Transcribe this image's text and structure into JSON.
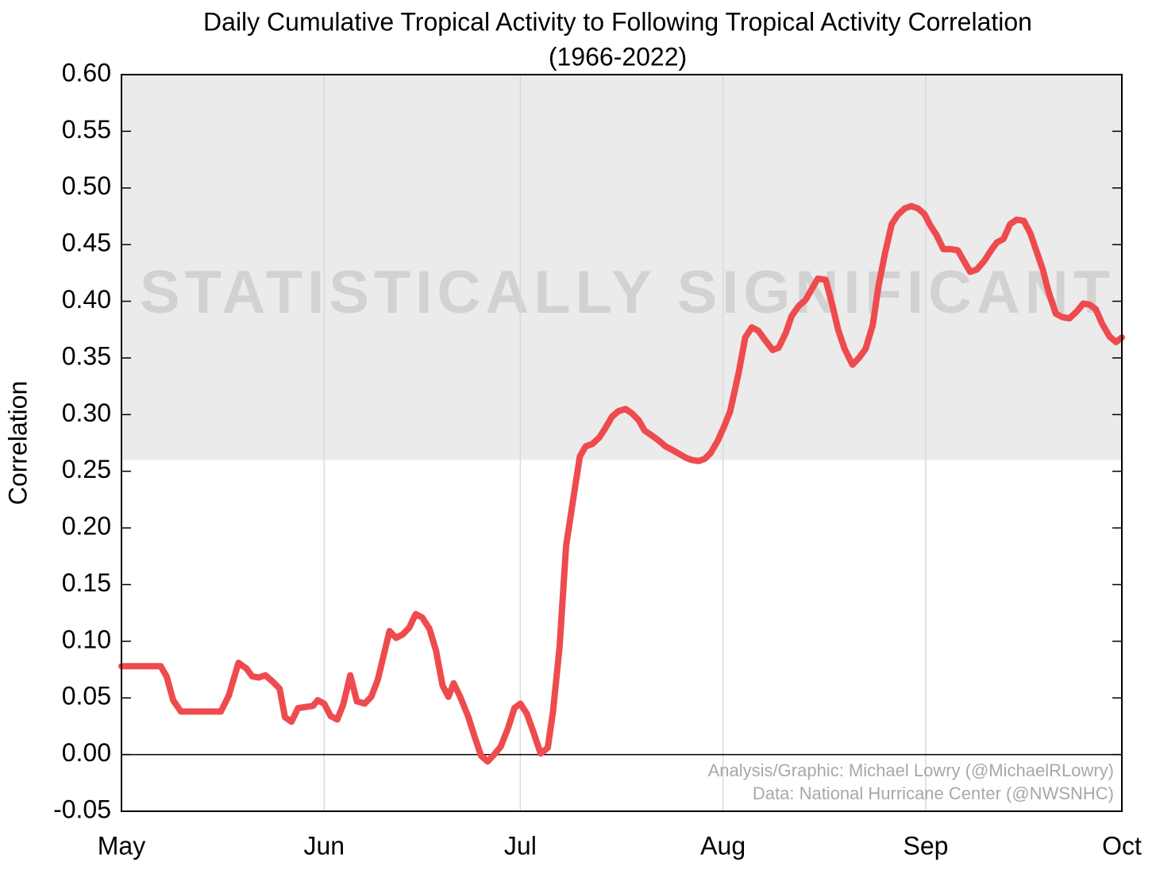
{
  "chart_data": {
    "type": "line",
    "title": "Daily Cumulative Tropical Activity to Following Tropical Activity Correlation",
    "subtitle": "(1966-2022)",
    "y_label": "Correlation",
    "annotation": "STATISTICALLY SIGNIFICANT",
    "credits": [
      "Analysis/Graphic: Michael Lowry (@MichaelRLowry)",
      "Data: National Hurricane Center (@NWSNHC)"
    ],
    "significance_threshold": 0.26,
    "xlim": [
      0,
      153
    ],
    "xticks": [
      {
        "value": 0,
        "label": "May"
      },
      {
        "value": 31,
        "label": "Jun"
      },
      {
        "value": 61,
        "label": "Jul"
      },
      {
        "value": 92,
        "label": "Aug"
      },
      {
        "value": 123,
        "label": "Sep"
      },
      {
        "value": 153,
        "label": "Oct"
      }
    ],
    "ylim": [
      -0.05,
      0.6
    ],
    "yticks": [
      {
        "value": -0.05,
        "label": "-0.05"
      },
      {
        "value": 0,
        "label": "0.00"
      },
      {
        "value": 0.05,
        "label": "0.05"
      },
      {
        "value": 0.1,
        "label": "0.10"
      },
      {
        "value": 0.15,
        "label": "0.15"
      },
      {
        "value": 0.2,
        "label": "0.20"
      },
      {
        "value": 0.25,
        "label": "0.25"
      },
      {
        "value": 0.3,
        "label": "0.30"
      },
      {
        "value": 0.35,
        "label": "0.35"
      },
      {
        "value": 0.4,
        "label": "0.40"
      },
      {
        "value": 0.45,
        "label": "0.45"
      },
      {
        "value": 0.5,
        "label": "0.50"
      },
      {
        "value": 0.55,
        "label": "0.55"
      },
      {
        "value": 0.6,
        "label": "0.60"
      }
    ],
    "grid": true,
    "series": [
      {
        "name": "Correlation",
        "color": "#ee4b4f",
        "x": [
          0,
          6,
          6.9,
          7.9,
          9.1,
          15.2,
          16.4,
          17.9,
          19.1,
          20,
          21,
          22,
          23.2,
          24.2,
          25,
          26,
          27,
          29.3,
          30,
          31,
          32,
          33,
          33.9,
          35,
          36,
          37.2,
          38.2,
          39.2,
          41,
          42,
          43,
          44,
          45,
          46,
          47.1,
          48.1,
          49.1,
          50,
          50.8,
          51.8,
          53,
          54,
          55,
          56,
          57,
          58,
          59.1,
          60.1,
          61,
          62,
          63,
          64.1,
          65.2,
          66,
          67,
          68,
          69.1,
          70.1,
          71,
          72,
          73.1,
          74,
          75,
          76,
          77.1,
          78.1,
          79.1,
          80,
          81,
          82.2,
          83.2,
          84.2,
          85.4,
          86.3,
          87.2,
          88.3,
          89.2,
          90.1,
          91.2,
          92.2,
          93.1,
          94.4,
          95.4,
          96.4,
          97.4,
          98.4,
          99.6,
          100.5,
          101.6,
          102.5,
          103.6,
          104.6,
          105.5,
          106.5,
          107.7,
          108.7,
          109.6,
          110.6,
          111.8,
          112.8,
          113.8,
          114.9,
          115.8,
          116.8,
          117.8,
          118.7,
          119.8,
          120.8,
          121.8,
          122.8,
          123.7,
          124.7,
          125.7,
          126.9,
          127.9,
          128.8,
          129.8,
          130.8,
          132,
          133,
          133.9,
          134.9,
          135.9,
          136.9,
          138,
          139,
          139.9,
          140.9,
          141.8,
          142.9,
          143.9,
          145,
          146.1,
          147.1,
          148.1,
          149,
          150,
          151.1,
          152.1,
          153
        ],
        "values": [
          0.078,
          0.078,
          0.069,
          0.048,
          0.038,
          0.038,
          0.052,
          0.081,
          0.076,
          0.069,
          0.068,
          0.07,
          0.064,
          0.058,
          0.033,
          0.029,
          0.041,
          0.043,
          0.048,
          0.045,
          0.034,
          0.031,
          0.044,
          0.07,
          0.047,
          0.045,
          0.051,
          0.066,
          0.109,
          0.103,
          0.106,
          0.112,
          0.124,
          0.121,
          0.111,
          0.092,
          0.061,
          0.051,
          0.063,
          0.051,
          0.034,
          0.016,
          -0.001,
          -0.006,
          0.0,
          0.007,
          0.023,
          0.041,
          0.045,
          0.036,
          0.02,
          0.001,
          0.006,
          0.038,
          0.095,
          0.184,
          0.226,
          0.263,
          0.272,
          0.274,
          0.28,
          0.288,
          0.298,
          0.303,
          0.305,
          0.301,
          0.295,
          0.286,
          0.282,
          0.277,
          0.272,
          0.269,
          0.265,
          0.262,
          0.26,
          0.259,
          0.261,
          0.266,
          0.277,
          0.29,
          0.303,
          0.337,
          0.368,
          0.377,
          0.374,
          0.366,
          0.357,
          0.359,
          0.372,
          0.387,
          0.396,
          0.401,
          0.41,
          0.42,
          0.419,
          0.397,
          0.375,
          0.358,
          0.344,
          0.35,
          0.358,
          0.379,
          0.414,
          0.443,
          0.468,
          0.476,
          0.482,
          0.484,
          0.482,
          0.477,
          0.467,
          0.458,
          0.446,
          0.446,
          0.445,
          0.436,
          0.426,
          0.428,
          0.436,
          0.445,
          0.452,
          0.455,
          0.468,
          0.472,
          0.471,
          0.46,
          0.445,
          0.428,
          0.408,
          0.389,
          0.386,
          0.385,
          0.391,
          0.398,
          0.397,
          0.393,
          0.38,
          0.369,
          0.364,
          0.368
        ]
      }
    ]
  }
}
